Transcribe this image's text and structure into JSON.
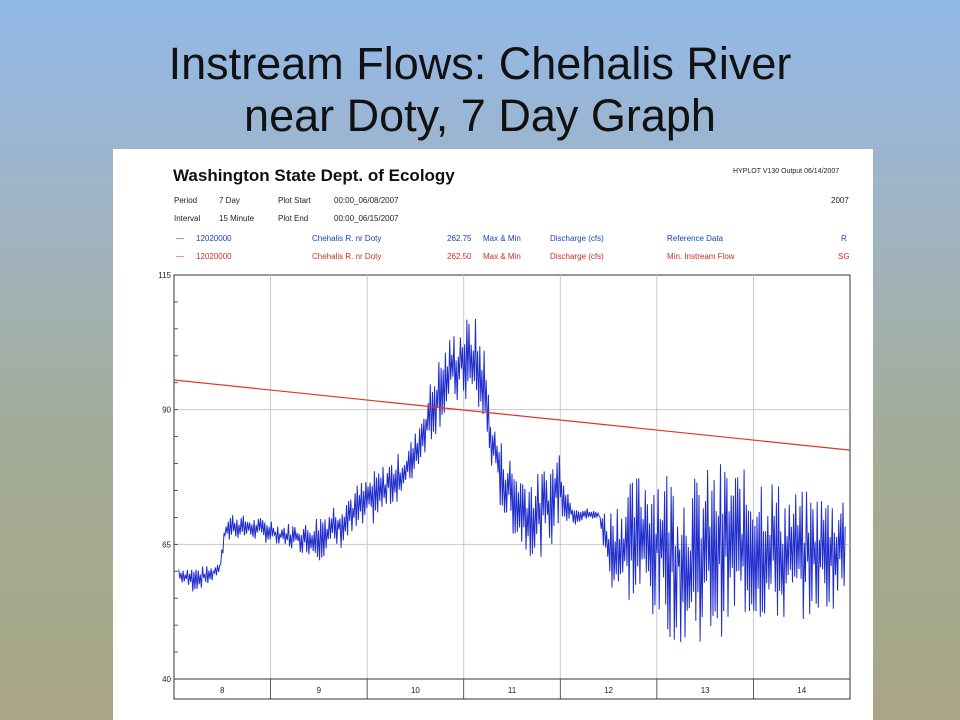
{
  "slide": {
    "title_line1": "Instream Flows: Chehalis River",
    "title_line2": "near Doty, 7 Day Graph"
  },
  "header": {
    "agency": "Washington State Dept. of Ecology",
    "hyplot": "HYPLOT V130 Output 06/14/2007",
    "year": "2007",
    "period_label": "Period",
    "period_value": "7 Day",
    "plot_start_label": "Plot Start",
    "plot_start_value": "00:00_06/08/2007",
    "interval_label": "Interval",
    "interval_value": "15 Minute",
    "plot_end_label": "Plot End",
    "plot_end_value": "00:00_06/15/2007"
  },
  "legend": [
    {
      "line": "—",
      "station": "12020000",
      "site": "Chehalis R. nr Doty",
      "value": "262.75",
      "stat": "Max & Min",
      "param": "Discharge (cfs)",
      "ref": "Reference Data",
      "code": "R",
      "color": "#1f3fbf"
    },
    {
      "line": "—",
      "station": "12020000",
      "site": "Chehalis R. nr Doty",
      "value": "262.50",
      "stat": "Max & Min",
      "param": "Discharge (cfs)",
      "ref": "Min. Instream Flow",
      "code": "SG",
      "color": "#d42a2a"
    }
  ],
  "colors": {
    "discharge": "#1f2ccc",
    "instream": "#e0342c",
    "grid": "#c8c8c8",
    "axis": "#333333"
  },
  "chart_data": {
    "type": "line",
    "ylim": [
      40,
      115
    ],
    "xlim": [
      7.5,
      14.5
    ],
    "y_ticks": [
      40,
      65,
      90,
      115
    ],
    "x_ticks": [
      8,
      9,
      10,
      11,
      12,
      13,
      14
    ],
    "x_tick_labels": [
      "8",
      "9",
      "10",
      "11",
      "12",
      "13",
      "14"
    ],
    "series": [
      {
        "name": "Chehalis R. nr Doty",
        "style": "envelope",
        "x": [
          7.55,
          7.7,
          7.9,
          7.98,
          8.02,
          8.1,
          8.3,
          8.5,
          8.6,
          8.7,
          8.9,
          9.0,
          9.15,
          9.3,
          9.45,
          9.6,
          9.75,
          9.9,
          10.0,
          10.1,
          10.2,
          10.3,
          10.4,
          10.5,
          10.6,
          10.7,
          10.75,
          10.8,
          10.9,
          11.0,
          11.1,
          11.25,
          11.4,
          11.5,
          11.6,
          11.75,
          11.9,
          12.0,
          12.2,
          12.4,
          12.6,
          12.8,
          13.0,
          13.2,
          13.4,
          13.6,
          13.8,
          14.0,
          14.2,
          14.45
        ],
        "max": [
          61,
          61,
          61,
          62,
          70,
          71,
          70,
          70,
          69,
          69,
          69,
          71,
          73,
          75,
          77,
          79,
          81,
          83,
          86,
          92,
          98,
          102,
          105,
          107,
          108,
          104,
          96,
          88,
          84,
          81,
          79,
          78,
          81,
          84,
          74,
          72,
          71,
          72,
          76,
          81,
          80,
          77,
          79,
          81,
          79,
          80,
          76,
          75,
          75,
          75
        ],
        "min": [
          58,
          56,
          58,
          60,
          64,
          66,
          66,
          65,
          64,
          64,
          63,
          62,
          63,
          65,
          67,
          69,
          72,
          74,
          78,
          82,
          85,
          88,
          90,
          91,
          90,
          86,
          82,
          78,
          70,
          67,
          64,
          62,
          64,
          69,
          68,
          69,
          70,
          57,
          54,
          52,
          48,
          46,
          47,
          48,
          51,
          50,
          50,
          51,
          52,
          54
        ]
      },
      {
        "name": "Min. Instream Flow",
        "style": "line",
        "x": [
          7.5,
          14.5
        ],
        "y": [
          95.5,
          82.5
        ]
      }
    ]
  }
}
